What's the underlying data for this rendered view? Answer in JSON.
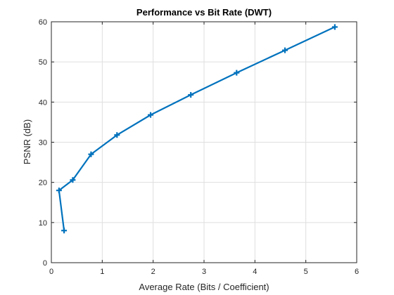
{
  "chart_data": {
    "type": "line",
    "title": "Performance vs Bit Rate (DWT)",
    "xlabel": "Average Rate (Bits / Coefficient)",
    "ylabel": "PSNR (dB)",
    "xlim": [
      0,
      6
    ],
    "ylim": [
      0,
      60
    ],
    "xticks": [
      0,
      1,
      2,
      3,
      4,
      5,
      6
    ],
    "yticks": [
      0,
      10,
      20,
      30,
      40,
      50,
      60
    ],
    "grid": true,
    "legend": "none",
    "series": [
      {
        "color": "#0072bd",
        "marker": "plus",
        "x": [
          0.25,
          0.15,
          0.42,
          0.78,
          1.29,
          1.95,
          2.74,
          3.64,
          4.59,
          5.57
        ],
        "y": [
          8.0,
          18.0,
          20.6,
          27.0,
          31.8,
          36.8,
          41.8,
          47.3,
          52.9,
          58.7
        ]
      }
    ]
  }
}
